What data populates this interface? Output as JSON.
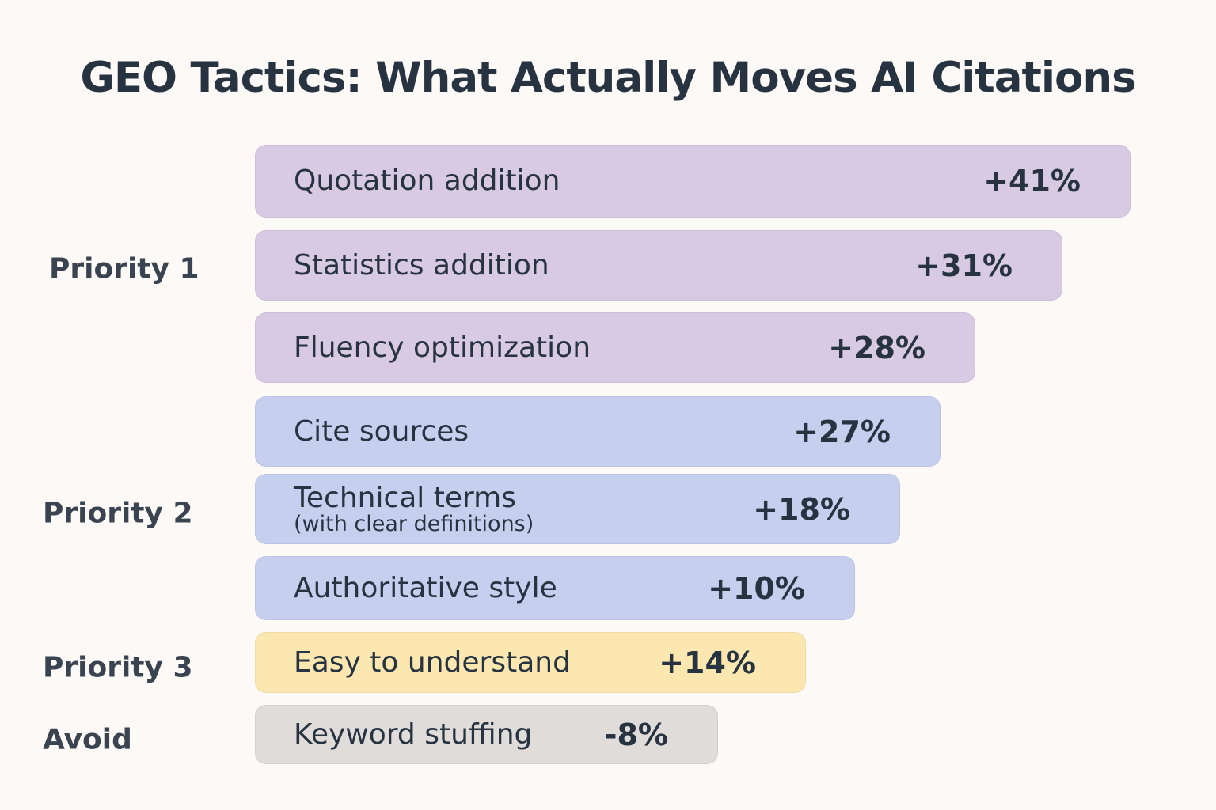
{
  "chart_data": {
    "type": "bar",
    "orientation": "horizontal",
    "title": "GEO Tactics: What Actually Moves AI Citations",
    "bars": [
      {
        "label": "Quotation addition",
        "sublabel": "",
        "value": 41,
        "value_label": "+41%",
        "group": "Priority 1",
        "color": "#d8cae2"
      },
      {
        "label": "Statistics addition",
        "sublabel": "",
        "value": 31,
        "value_label": "+31%",
        "group": "Priority 1",
        "color": "#d8cae2"
      },
      {
        "label": "Fluency optimization",
        "sublabel": "",
        "value": 28,
        "value_label": "+28%",
        "group": "Priority 1",
        "color": "#d8cae2"
      },
      {
        "label": "Cite sources",
        "sublabel": "",
        "value": 27,
        "value_label": "+27%",
        "group": "Priority 2",
        "color": "#c7cfef"
      },
      {
        "label": "Technical terms",
        "sublabel": "(with clear definitions)",
        "value": 18,
        "value_label": "+18%",
        "group": "Priority 2",
        "color": "#c7cfef"
      },
      {
        "label": "Authoritative style",
        "sublabel": "",
        "value": 10,
        "value_label": "+10%",
        "group": "Priority 2",
        "color": "#c7cfef"
      },
      {
        "label": "Easy to understand",
        "sublabel": "",
        "value": 14,
        "value_label": "+14%",
        "group": "Priority 3",
        "color": "#fbe7af"
      },
      {
        "label": "Keyword stuffing",
        "sublabel": "",
        "value": -8,
        "value_label": "-8%",
        "group": "Avoid",
        "color": "#e0dcda"
      }
    ],
    "groups": [
      "Priority 1",
      "Priority 2",
      "Priority 3",
      "Avoid"
    ]
  }
}
